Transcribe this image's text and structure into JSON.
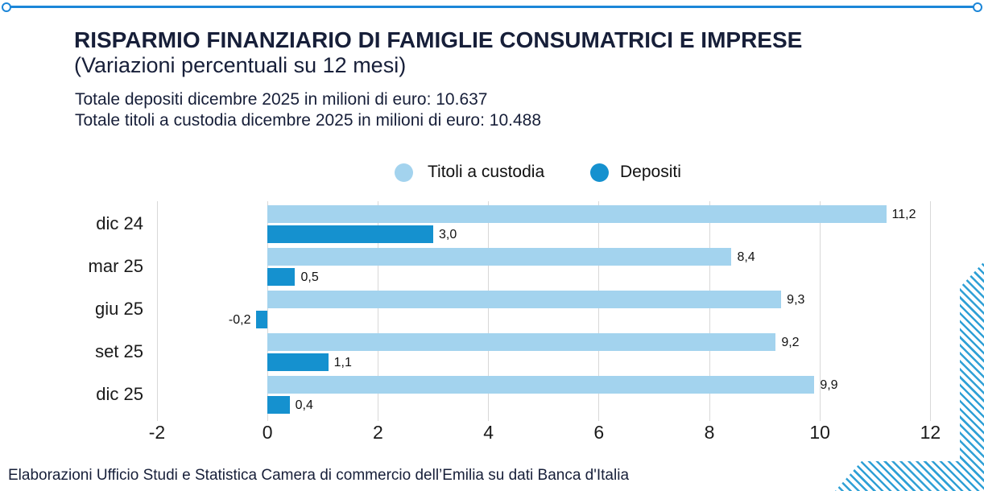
{
  "header": {
    "title": "RISPARMIO FINANZIARIO DI FAMIGLIE CONSUMATRICI E IMPRESE",
    "subtitle": "(Variazioni percentuali su 12 mesi)",
    "totals": [
      "Totale depositi dicembre 2025 in milioni di euro: 10.637",
      "Totale titoli a custodia dicembre 2025 in milioni di euro: 10.488"
    ]
  },
  "legend": [
    {
      "label": "Titoli a custodia",
      "color": "#a3d3ee"
    },
    {
      "label": "Depositi",
      "color": "#1591cf"
    }
  ],
  "chart_data": {
    "type": "bar",
    "orientation": "horizontal",
    "title": "Risparmio finanziario di famiglie consumatrici e imprese (variazioni percentuali su 12 mesi)",
    "categories": [
      "dic 24",
      "mar 25",
      "giu 25",
      "set 25",
      "dic 25"
    ],
    "series": [
      {
        "name": "Titoli a custodia",
        "color": "#a3d3ee",
        "values": [
          11.2,
          8.4,
          9.3,
          9.2,
          9.9
        ],
        "labels": [
          "11,2",
          "8,4",
          "9,3",
          "9,2",
          "9,9"
        ]
      },
      {
        "name": "Depositi",
        "color": "#1591cf",
        "values": [
          3.0,
          0.5,
          -0.2,
          1.1,
          0.4
        ],
        "labels": [
          "3,0",
          "0,5",
          "-0,2",
          "1,1",
          "0,4"
        ]
      }
    ],
    "x_ticks": [
      -2,
      0,
      2,
      4,
      6,
      8,
      10,
      12
    ],
    "x_tick_labels": [
      "-2",
      "0",
      "2",
      "4",
      "6",
      "8",
      "10",
      "12"
    ],
    "xlim": [
      -2,
      12
    ],
    "grid": true,
    "legend_position": "top",
    "value_label_decimal": "comma"
  },
  "footer": {
    "text": "Elaborazioni Ufficio Studi e Statistica Camera di commercio dell’Emilia su dati Banca d'Italia"
  },
  "colors": {
    "accent_line": "#1c86d8",
    "titoli_bar": "#a3d3ee",
    "depositi_bar": "#1591cf",
    "hatch_stripe": "#2fa0d6",
    "gridline": "#d8d8d8",
    "heading_text": "#171f39",
    "body_text": "#111111"
  }
}
